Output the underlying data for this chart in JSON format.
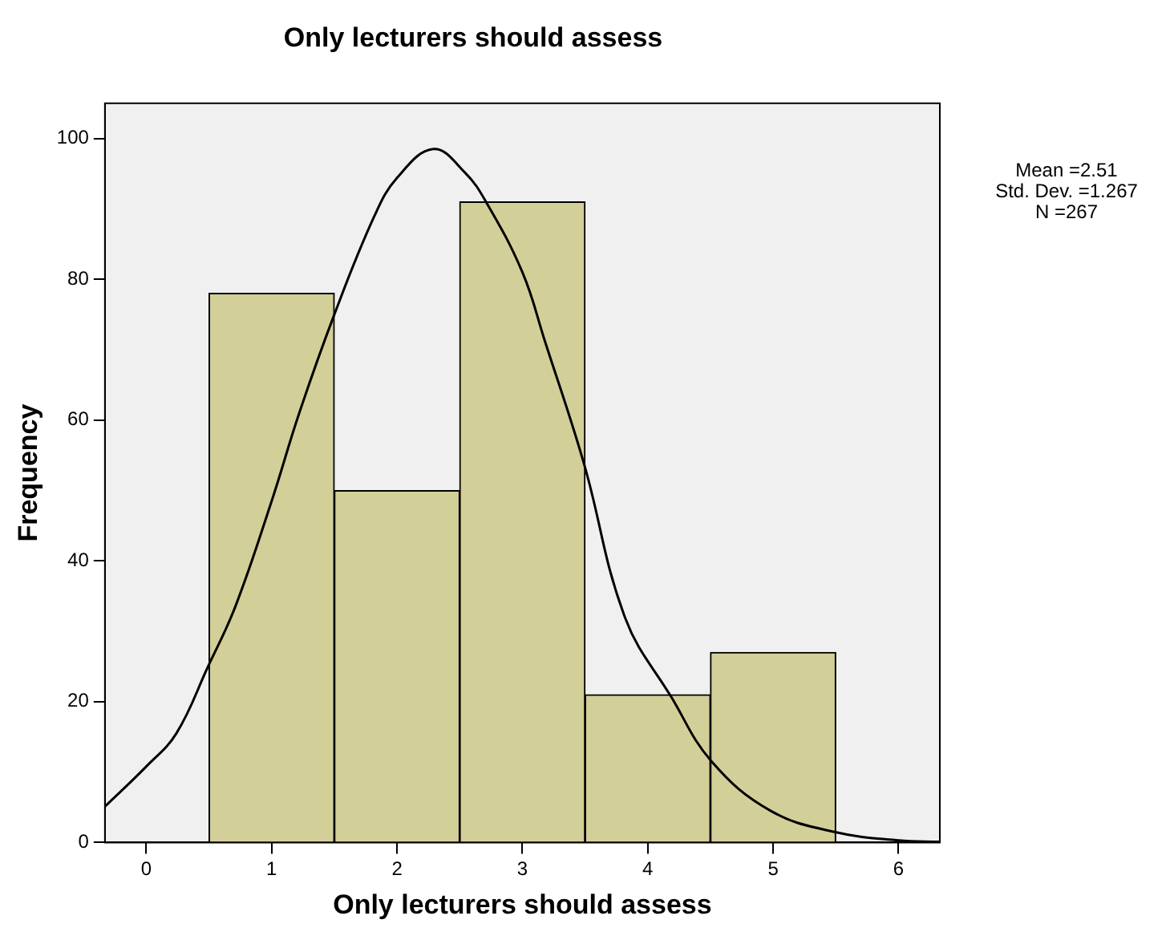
{
  "chart_data": {
    "type": "histogram",
    "title": "Only lecturers should assess",
    "xlabel": "Only lecturers should assess",
    "ylabel": "Frequency",
    "bins": [
      0.5,
      1.5,
      2.5,
      3.5,
      4.5,
      5.5
    ],
    "values": [
      78,
      50,
      91,
      21,
      27
    ],
    "color": "#d3cf98",
    "xlim": [
      -0.33,
      6.33
    ],
    "ylim": [
      0,
      105
    ],
    "xticks": [
      0,
      1,
      2,
      3,
      4,
      5,
      6
    ],
    "yticks": [
      0,
      20,
      40,
      60,
      80,
      100
    ],
    "grid": false,
    "legend": false,
    "marker": "none",
    "annotations": [
      "Mean =2.51",
      "Std. Dev. =1.267",
      "N =267"
    ],
    "series": [
      {
        "type": "line",
        "color": "#000000",
        "x": [
          -0.33,
          0,
          0.24,
          0.49,
          0.71,
          1,
          1.22,
          1.5,
          1.82,
          2,
          2.29,
          2.54,
          2.71,
          3,
          3.18,
          3.49,
          3.82,
          4.19,
          4.51,
          4.98,
          5.49,
          6,
          6.33
        ],
        "values": [
          5.1,
          10.8,
          15.5,
          24.9,
          33.5,
          48.5,
          61,
          75,
          89,
          94.4,
          98.5,
          95.2,
          91,
          81,
          71.2,
          53.9,
          31.9,
          20.6,
          11.5,
          4.5,
          1.5,
          0.3,
          0.1
        ]
      }
    ]
  }
}
